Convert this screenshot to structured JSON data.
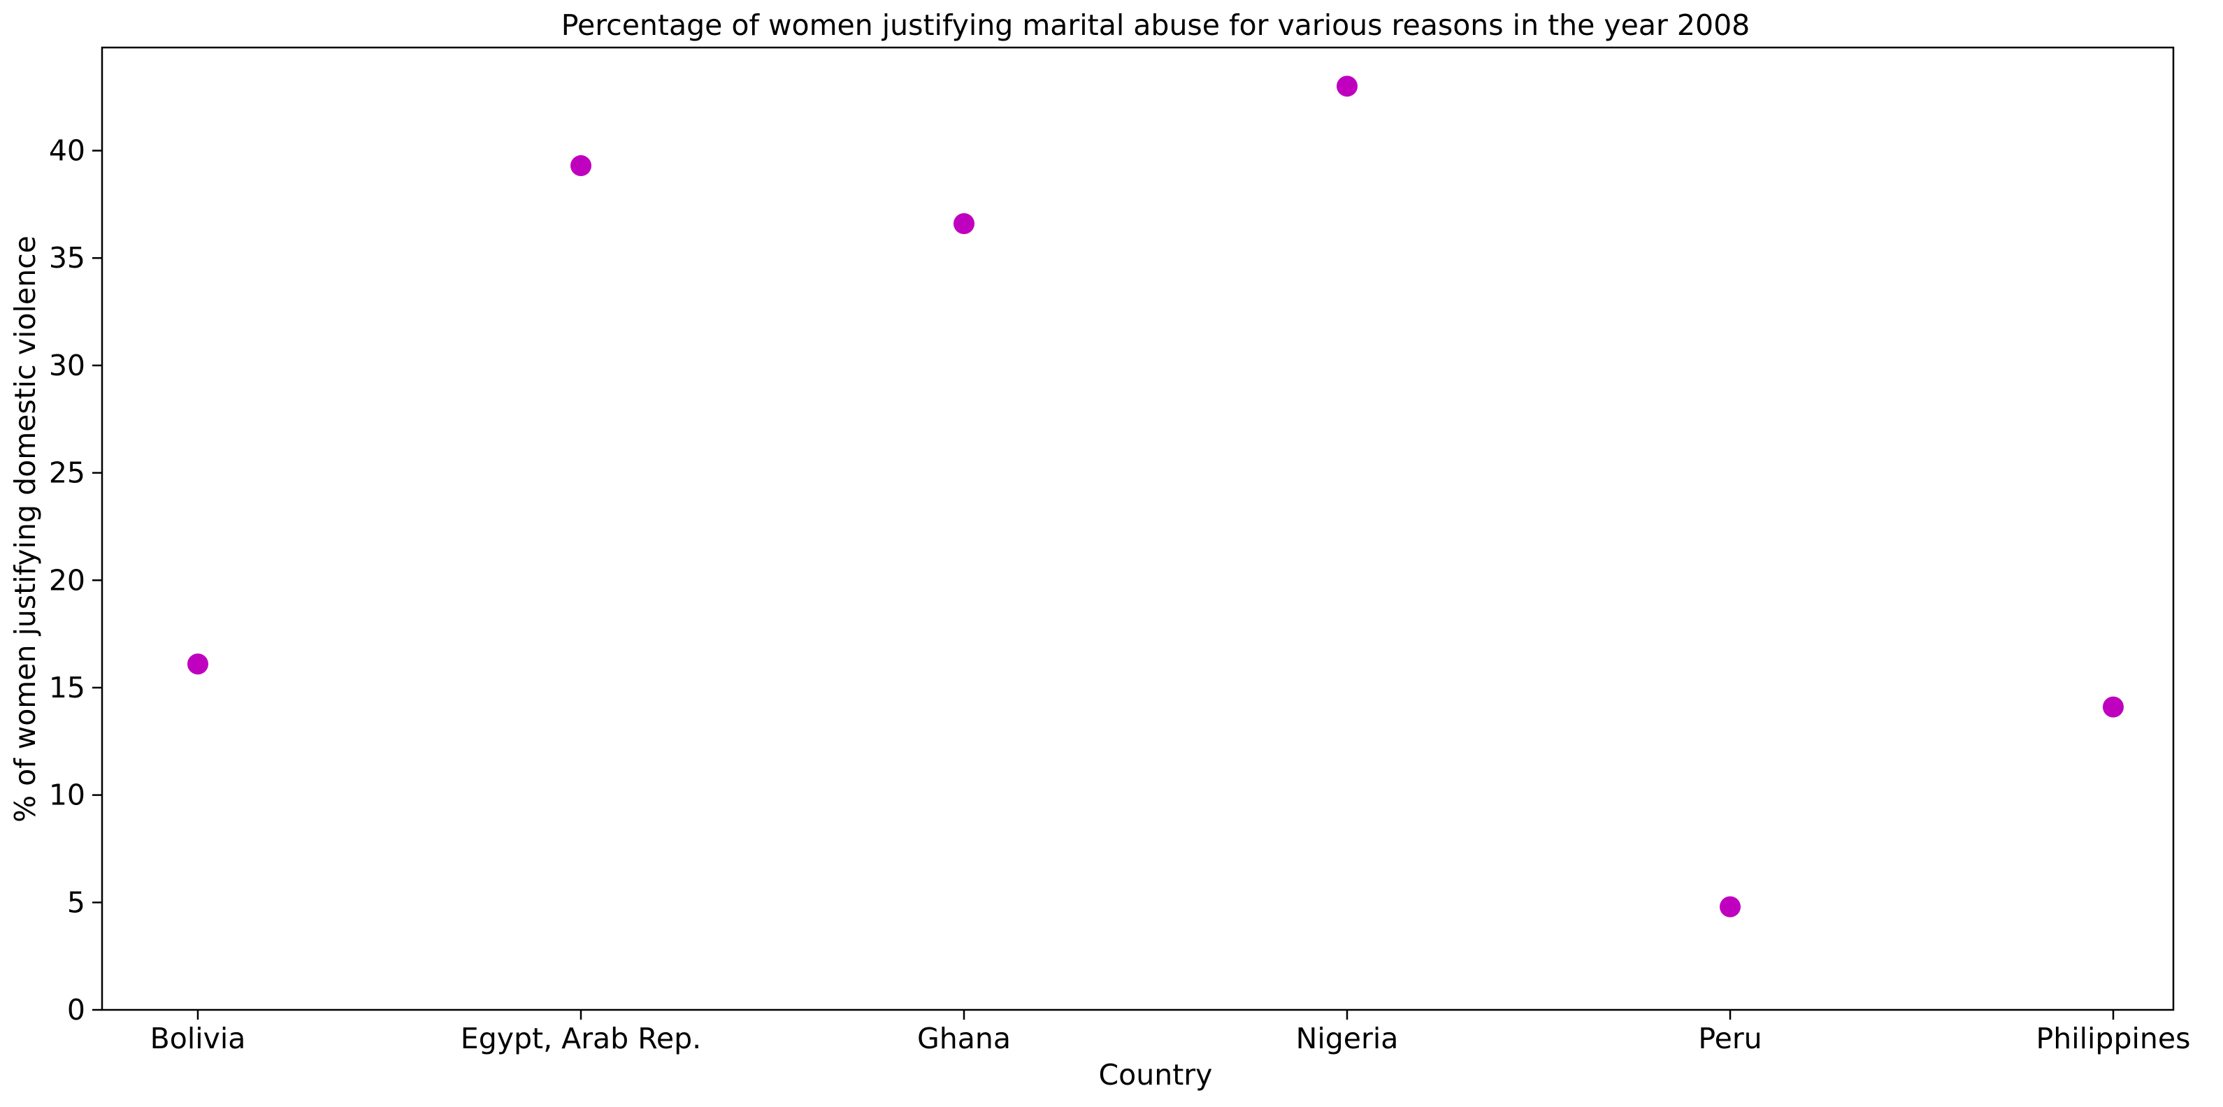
{
  "chart_data": {
    "type": "scatter",
    "title": "Percentage of women justifying marital abuse for various reasons in the year 2008",
    "xlabel": "Country",
    "ylabel": "% of women justifying domestic violence",
    "categories": [
      "Bolivia",
      "Egypt, Arab Rep.",
      "Ghana",
      "Nigeria",
      "Peru",
      "Philippines"
    ],
    "values": [
      16.1,
      39.3,
      36.6,
      43.0,
      4.8,
      14.1
    ],
    "ylim": [
      0,
      44.8
    ],
    "yticks": [
      0,
      5,
      10,
      15,
      20,
      25,
      30,
      35,
      40
    ],
    "grid": false,
    "legend": "none",
    "colors": {
      "marker": "#bf00bf",
      "axes": "#000000"
    }
  }
}
